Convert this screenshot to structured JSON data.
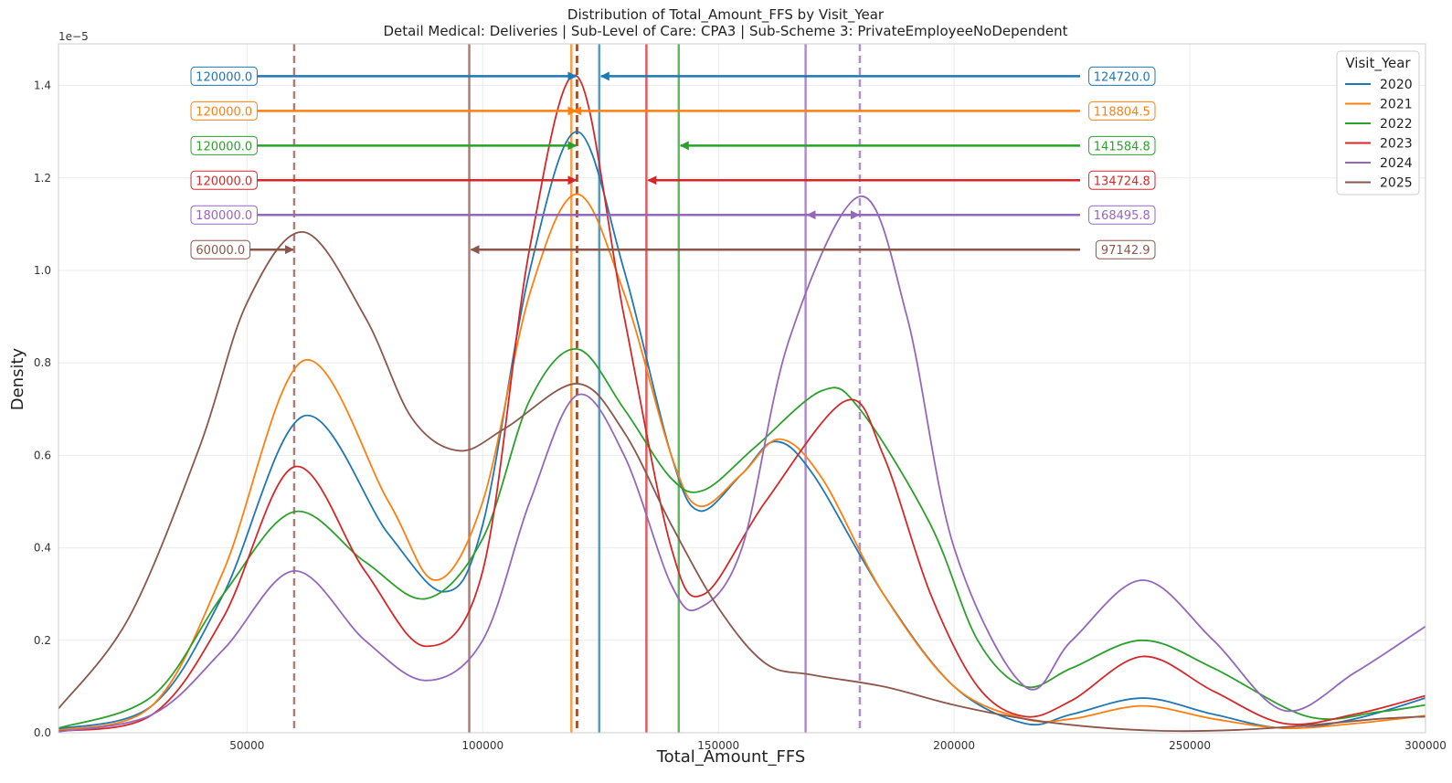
{
  "chart_data": {
    "type": "line",
    "title": "Distribution of Total_Amount_FFS by Visit_Year",
    "subtitle": "Detail Medical: Deliveries | Sub-Level of Care: CPA3 | Sub-Scheme 3: PrivateEmployeeNoDependent",
    "xlabel": "Total_Amount_FFS",
    "ylabel": "Density",
    "y_scale_label": "1e−5",
    "xlim": [
      10000,
      300000
    ],
    "ylim": [
      0,
      1.49
    ],
    "x_ticks": [
      50000,
      100000,
      150000,
      200000,
      250000,
      300000
    ],
    "y_ticks": [
      0.0,
      0.2,
      0.4,
      0.6,
      0.8,
      1.0,
      1.2,
      1.4
    ],
    "x_tick_labels": [
      "50000",
      "100000",
      "150000",
      "200000",
      "250000",
      "300000"
    ],
    "y_tick_labels": [
      "0.0",
      "0.2",
      "0.4",
      "0.6",
      "0.8",
      "1.0",
      "1.2",
      "1.4"
    ],
    "grid": true,
    "legend": {
      "title": "Visit_Year",
      "position": "top-right"
    },
    "series": [
      {
        "name": "2020",
        "color": "#1f77b4",
        "median": 120000.0,
        "mean": 124720.0,
        "median_label": "120000.0",
        "mean_label": "124720.0",
        "arrow_y": 1.42,
        "points": [
          [
            10000,
            0.008
          ],
          [
            30000,
            0.06
          ],
          [
            45000,
            0.3
          ],
          [
            62000,
            0.685
          ],
          [
            80000,
            0.43
          ],
          [
            92000,
            0.305
          ],
          [
            100000,
            0.45
          ],
          [
            110000,
            1.0
          ],
          [
            120000,
            1.3
          ],
          [
            130000,
            1.0
          ],
          [
            140000,
            0.6
          ],
          [
            146000,
            0.48
          ],
          [
            155000,
            0.56
          ],
          [
            162000,
            0.63
          ],
          [
            170000,
            0.56
          ],
          [
            185000,
            0.3
          ],
          [
            200000,
            0.1
          ],
          [
            215000,
            0.02
          ],
          [
            225000,
            0.04
          ],
          [
            240000,
            0.075
          ],
          [
            255000,
            0.04
          ],
          [
            270000,
            0.01
          ],
          [
            285000,
            0.03
          ],
          [
            300000,
            0.075
          ]
        ]
      },
      {
        "name": "2021",
        "color": "#ff7f0e",
        "median": 120000.0,
        "mean": 118804.5,
        "median_label": "120000.0",
        "mean_label": "118804.5",
        "arrow_y": 1.345,
        "points": [
          [
            10000,
            0.005
          ],
          [
            30000,
            0.06
          ],
          [
            45000,
            0.35
          ],
          [
            62000,
            0.805
          ],
          [
            80000,
            0.5
          ],
          [
            90000,
            0.33
          ],
          [
            100000,
            0.5
          ],
          [
            110000,
            0.95
          ],
          [
            120000,
            1.165
          ],
          [
            130000,
            0.95
          ],
          [
            140000,
            0.6
          ],
          [
            146000,
            0.49
          ],
          [
            155000,
            0.56
          ],
          [
            163000,
            0.635
          ],
          [
            172000,
            0.55
          ],
          [
            185000,
            0.3
          ],
          [
            200000,
            0.1
          ],
          [
            215000,
            0.03
          ],
          [
            225000,
            0.03
          ],
          [
            240000,
            0.058
          ],
          [
            255000,
            0.03
          ],
          [
            270000,
            0.01
          ],
          [
            285000,
            0.02
          ],
          [
            300000,
            0.037
          ]
        ]
      },
      {
        "name": "2022",
        "color": "#2ca02c",
        "median": 120000.0,
        "mean": 141584.8,
        "median_label": "120000.0",
        "mean_label": "141584.8",
        "arrow_y": 1.27,
        "points": [
          [
            10000,
            0.01
          ],
          [
            30000,
            0.08
          ],
          [
            45000,
            0.3
          ],
          [
            60000,
            0.478
          ],
          [
            75000,
            0.37
          ],
          [
            88000,
            0.29
          ],
          [
            100000,
            0.42
          ],
          [
            110000,
            0.72
          ],
          [
            120000,
            0.83
          ],
          [
            130000,
            0.7
          ],
          [
            140000,
            0.55
          ],
          [
            147000,
            0.525
          ],
          [
            158000,
            0.62
          ],
          [
            172000,
            0.74
          ],
          [
            180000,
            0.7
          ],
          [
            195000,
            0.45
          ],
          [
            205000,
            0.2
          ],
          [
            215000,
            0.1
          ],
          [
            225000,
            0.14
          ],
          [
            240000,
            0.2
          ],
          [
            255000,
            0.14
          ],
          [
            275000,
            0.035
          ],
          [
            290000,
            0.045
          ],
          [
            300000,
            0.06
          ]
        ]
      },
      {
        "name": "2023",
        "color": "#d62728",
        "median": 120000.0,
        "mean": 134724.8,
        "median_label": "120000.0",
        "mean_label": "134724.8",
        "arrow_y": 1.195,
        "points": [
          [
            10000,
            0.003
          ],
          [
            30000,
            0.04
          ],
          [
            45000,
            0.25
          ],
          [
            60000,
            0.575
          ],
          [
            75000,
            0.35
          ],
          [
            88000,
            0.187
          ],
          [
            100000,
            0.35
          ],
          [
            110000,
            1.05
          ],
          [
            120000,
            1.42
          ],
          [
            130000,
            0.9
          ],
          [
            140000,
            0.4
          ],
          [
            147000,
            0.3
          ],
          [
            160000,
            0.5
          ],
          [
            177000,
            0.718
          ],
          [
            185000,
            0.6
          ],
          [
            195000,
            0.3
          ],
          [
            205000,
            0.1
          ],
          [
            215000,
            0.035
          ],
          [
            225000,
            0.07
          ],
          [
            240000,
            0.165
          ],
          [
            255000,
            0.09
          ],
          [
            270000,
            0.02
          ],
          [
            285000,
            0.04
          ],
          [
            300000,
            0.08
          ]
        ]
      },
      {
        "name": "2024",
        "color": "#9467bd",
        "median": 180000.0,
        "mean": 168495.8,
        "median_label": "180000.0",
        "mean_label": "168495.8",
        "arrow_y": 1.12,
        "points": [
          [
            10000,
            0.002
          ],
          [
            30000,
            0.04
          ],
          [
            45000,
            0.18
          ],
          [
            60000,
            0.35
          ],
          [
            75000,
            0.2
          ],
          [
            88000,
            0.113
          ],
          [
            100000,
            0.2
          ],
          [
            110000,
            0.5
          ],
          [
            120000,
            0.73
          ],
          [
            130000,
            0.6
          ],
          [
            140000,
            0.32
          ],
          [
            146000,
            0.27
          ],
          [
            155000,
            0.4
          ],
          [
            165000,
            0.85
          ],
          [
            180000,
            1.16
          ],
          [
            190000,
            0.9
          ],
          [
            200000,
            0.4
          ],
          [
            215000,
            0.1
          ],
          [
            225000,
            0.2
          ],
          [
            240000,
            0.33
          ],
          [
            255000,
            0.2
          ],
          [
            270000,
            0.048
          ],
          [
            285000,
            0.13
          ],
          [
            300000,
            0.23
          ]
        ]
      },
      {
        "name": "2025",
        "color": "#8c564b",
        "median": 60000.0,
        "mean": 97142.9,
        "median_label": "60000.0",
        "mean_label": "97142.9",
        "arrow_y": 1.045,
        "points": [
          [
            10000,
            0.052
          ],
          [
            25000,
            0.25
          ],
          [
            40000,
            0.62
          ],
          [
            50000,
            0.93
          ],
          [
            62000,
            1.083
          ],
          [
            75000,
            0.9
          ],
          [
            85000,
            0.68
          ],
          [
            95000,
            0.61
          ],
          [
            105000,
            0.66
          ],
          [
            120000,
            0.755
          ],
          [
            130000,
            0.65
          ],
          [
            140000,
            0.45
          ],
          [
            150000,
            0.27
          ],
          [
            160000,
            0.15
          ],
          [
            170000,
            0.125
          ],
          [
            185000,
            0.1
          ],
          [
            200000,
            0.06
          ],
          [
            215000,
            0.03
          ],
          [
            230000,
            0.012
          ],
          [
            245000,
            0.004
          ],
          [
            260000,
            0.006
          ],
          [
            275000,
            0.016
          ],
          [
            290000,
            0.03
          ],
          [
            300000,
            0.035
          ]
        ]
      }
    ]
  }
}
